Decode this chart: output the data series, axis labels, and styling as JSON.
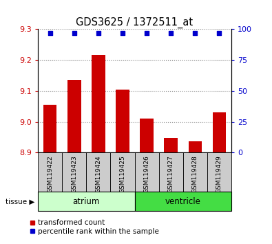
{
  "title": "GDS3625 / 1372511_at",
  "samples": [
    "GSM119422",
    "GSM119423",
    "GSM119424",
    "GSM119425",
    "GSM119426",
    "GSM119427",
    "GSM119428",
    "GSM119429"
  ],
  "bar_values": [
    9.055,
    9.135,
    9.215,
    9.105,
    9.01,
    8.947,
    8.937,
    9.03
  ],
  "percentile_values": [
    97,
    97,
    97,
    97,
    97,
    97,
    97,
    97
  ],
  "bar_bottom": 8.9,
  "ylim_left": [
    8.9,
    9.3
  ],
  "ylim_right": [
    0,
    100
  ],
  "yticks_left": [
    8.9,
    9.0,
    9.1,
    9.2,
    9.3
  ],
  "yticks_right": [
    0,
    25,
    50,
    75,
    100
  ],
  "bar_color": "#cc0000",
  "percentile_color": "#0000cc",
  "xlabel_color": "#cc0000",
  "ylabel_right_color": "#0000cc",
  "grid_color": "#888888",
  "sample_bg_color": "#cccccc",
  "atrium_color": "#ccffcc",
  "ventricle_color": "#44dd44",
  "legend_bar_label": "transformed count",
  "legend_pct_label": "percentile rank within the sample",
  "tissue_label": "tissue"
}
